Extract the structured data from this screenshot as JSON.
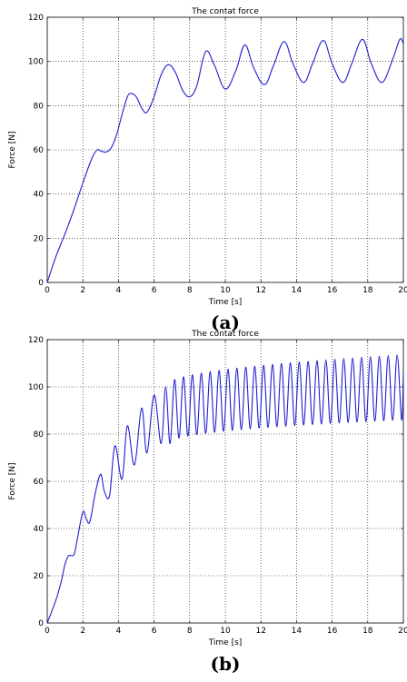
{
  "chart_data": [
    {
      "type": "line",
      "panel_label": "(a)",
      "title": "The contat force",
      "xlabel": "Time [s]",
      "ylabel": "Force [N]",
      "xlim": [
        0,
        20
      ],
      "ylim": [
        0,
        120
      ],
      "xticks": [
        "0",
        "2",
        "4",
        "6",
        "8",
        "10",
        "12",
        "14",
        "16",
        "18",
        "20"
      ],
      "yticks": [
        "0",
        "20",
        "40",
        "60",
        "80",
        "100",
        "120"
      ],
      "grid": true,
      "line_color": "#1f1fd0",
      "series": [
        {
          "x": [
            0,
            0.5,
            1.0,
            1.5,
            2.0,
            2.5,
            2.8,
            3.0,
            3.3,
            3.6,
            3.9,
            4.2,
            4.5,
            4.7,
            5.0,
            5.3,
            5.6,
            6.0,
            6.4,
            6.8,
            7.2,
            7.6,
            8.0,
            8.4,
            8.9,
            9.4,
            10.0,
            10.6,
            11.1,
            11.6,
            12.2,
            12.7,
            13.3,
            13.8,
            14.4,
            14.9,
            15.5,
            16.0,
            16.6,
            17.1,
            17.7,
            18.2,
            18.8,
            19.4,
            19.8,
            20.0
          ],
          "y": [
            0,
            12,
            22,
            33,
            45,
            56,
            60,
            59.5,
            59,
            61,
            67,
            76,
            84,
            85.5,
            84,
            79,
            77,
            84,
            94,
            98.5,
            95,
            87,
            84,
            89,
            104.5,
            98,
            87.5,
            96,
            107.5,
            97,
            89.5,
            98,
            109,
            99,
            90.5,
            99,
            109.5,
            99,
            90.5,
            99,
            110,
            99,
            90.5,
            101,
            110,
            108
          ]
        }
      ]
    },
    {
      "type": "line",
      "panel_label": "(b)",
      "title": "The contat force",
      "xlabel": "Time [s]",
      "ylabel": "Force [N]",
      "xlim": [
        0,
        20
      ],
      "ylim": [
        0,
        120
      ],
      "xticks": [
        "0",
        "2",
        "4",
        "6",
        "8",
        "10",
        "12",
        "14",
        "16",
        "18",
        "20"
      ],
      "yticks": [
        "0",
        "20",
        "40",
        "60",
        "80",
        "100",
        "120"
      ],
      "grid": true,
      "line_color": "#1f1fd0",
      "series": [
        {
          "x": [
            0,
            0.5,
            0.8,
            1.0,
            1.2,
            1.5,
            1.7,
            2.0,
            2.2,
            2.4,
            2.7,
            3.0,
            3.2,
            3.5,
            3.8,
            4.2,
            4.5,
            4.9,
            5.3,
            5.6,
            6.0,
            6.4
          ],
          "y": [
            0,
            10,
            18,
            25,
            28.5,
            29,
            36,
            47,
            44,
            43,
            55,
            63,
            56,
            54,
            75,
            61,
            83.5,
            67,
            91,
            72,
            96.5,
            76
          ],
          "oscillation": {
            "x_start": 6.4,
            "x_end": 20,
            "period": 0.5,
            "peak_start": 100,
            "peak_end": 113.5,
            "trough_start": 76,
            "trough_end": 86,
            "end_value": 106
          }
        }
      ]
    }
  ]
}
